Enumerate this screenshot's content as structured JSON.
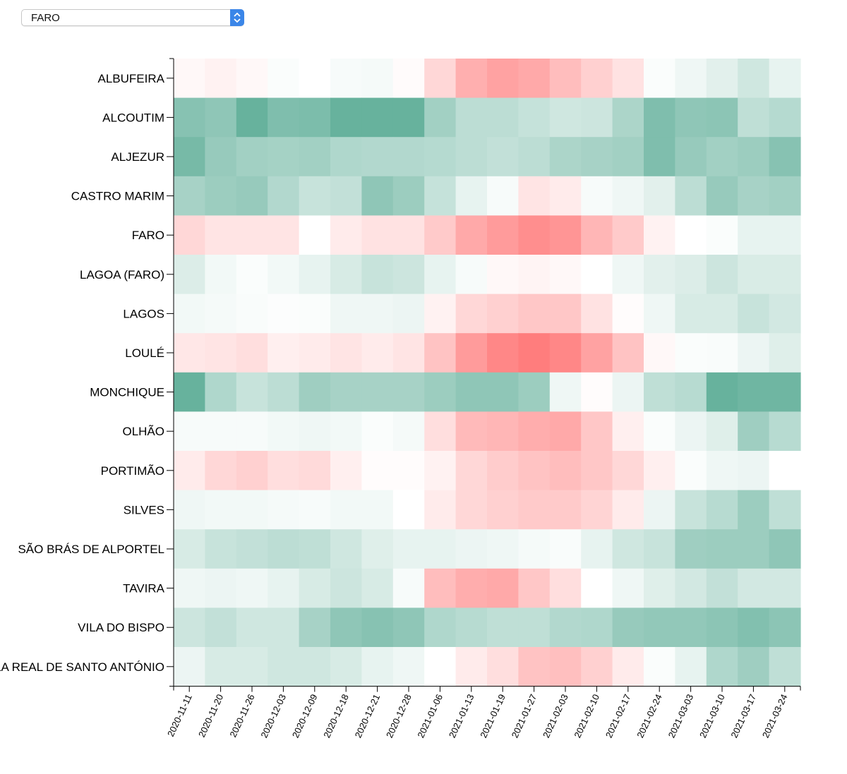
{
  "selector": {
    "value": "FARO",
    "options_visible": [
      "FARO"
    ],
    "icon": "chevron-up-down-icon"
  },
  "chart_data": {
    "type": "heatmap",
    "title": "",
    "xlabel": "",
    "ylabel": "",
    "grid": false,
    "color_scale": {
      "negative": "#5fae98",
      "neutral": "#ffffff",
      "positive": "#ff7a7a",
      "domain": [
        -1,
        1
      ]
    },
    "x": [
      "2020-11-11",
      "2020-11-20",
      "2020-11-26",
      "2020-12-03",
      "2020-12-09",
      "2020-12-18",
      "2020-12-21",
      "2020-12-28",
      "2021-01-06",
      "2021-01-13",
      "2021-01-19",
      "2021-01-27",
      "2021-02-03",
      "2021-02-10",
      "2021-02-17",
      "2021-02-24",
      "2021-03-03",
      "2021-03-10",
      "2021-03-17",
      "2021-03-24"
    ],
    "y": [
      "ALBUFEIRA",
      "ALCOUTIM",
      "ALJEZUR",
      "CASTRO MARIM",
      "FARO",
      "LAGOA (FARO)",
      "LAGOS",
      "LOULÉ",
      "MONCHIQUE",
      "OLHÃO",
      "PORTIMÃO",
      "SILVES",
      "SÃO BRÁS DE ALPORTEL",
      "TAVIRA",
      "VILA DO BISPO",
      "VILA REAL DE SANTO ANTÓNIO"
    ],
    "values": [
      [
        0.05,
        0.1,
        0.05,
        -0.03,
        0.0,
        -0.05,
        -0.06,
        0.03,
        0.3,
        0.6,
        0.7,
        0.65,
        0.5,
        0.35,
        0.22,
        -0.03,
        -0.1,
        -0.18,
        -0.3,
        -0.15
      ],
      [
        -0.75,
        -0.7,
        -0.95,
        -0.8,
        -0.82,
        -0.95,
        -0.95,
        -0.95,
        -0.58,
        -0.42,
        -0.42,
        -0.36,
        -0.3,
        -0.32,
        -0.52,
        -0.8,
        -0.7,
        -0.72,
        -0.4,
        -0.46
      ],
      [
        -0.85,
        -0.65,
        -0.58,
        -0.56,
        -0.58,
        -0.5,
        -0.48,
        -0.48,
        -0.46,
        -0.42,
        -0.38,
        -0.42,
        -0.52,
        -0.55,
        -0.58,
        -0.8,
        -0.65,
        -0.58,
        -0.62,
        -0.75
      ],
      [
        -0.55,
        -0.62,
        -0.65,
        -0.48,
        -0.35,
        -0.38,
        -0.7,
        -0.62,
        -0.36,
        -0.15,
        -0.05,
        0.2,
        0.15,
        -0.05,
        -0.1,
        -0.18,
        -0.42,
        -0.65,
        -0.55,
        -0.58
      ],
      [
        0.3,
        0.2,
        0.2,
        0.2,
        0.0,
        0.15,
        0.22,
        0.22,
        0.4,
        0.65,
        0.75,
        0.85,
        0.8,
        0.55,
        0.4,
        0.1,
        0.0,
        -0.03,
        -0.15,
        -0.15
      ],
      [
        -0.22,
        -0.08,
        -0.03,
        -0.08,
        -0.15,
        -0.25,
        -0.35,
        -0.32,
        -0.15,
        -0.05,
        0.05,
        0.08,
        0.05,
        0.0,
        -0.1,
        -0.18,
        -0.22,
        -0.32,
        -0.24,
        -0.24
      ],
      [
        -0.08,
        -0.06,
        -0.04,
        -0.02,
        -0.03,
        -0.1,
        -0.1,
        -0.12,
        0.1,
        0.3,
        0.35,
        0.42,
        0.42,
        0.22,
        0.02,
        -0.1,
        -0.25,
        -0.25,
        -0.35,
        -0.28
      ],
      [
        0.18,
        0.2,
        0.25,
        0.12,
        0.15,
        0.2,
        0.15,
        0.2,
        0.45,
        0.75,
        0.9,
        0.98,
        0.9,
        0.7,
        0.45,
        0.05,
        -0.03,
        -0.04,
        -0.12,
        -0.2
      ],
      [
        -0.95,
        -0.5,
        -0.35,
        -0.42,
        -0.6,
        -0.55,
        -0.55,
        -0.55,
        -0.62,
        -0.7,
        -0.7,
        -0.62,
        -0.1,
        0.02,
        -0.12,
        -0.4,
        -0.45,
        -0.95,
        -0.9,
        -0.9
      ],
      [
        -0.05,
        -0.05,
        -0.05,
        -0.08,
        -0.1,
        -0.08,
        -0.03,
        -0.06,
        0.25,
        0.52,
        0.55,
        0.62,
        0.65,
        0.42,
        0.12,
        -0.03,
        -0.12,
        -0.2,
        -0.6,
        -0.45
      ],
      [
        0.15,
        0.3,
        0.35,
        0.25,
        0.28,
        0.12,
        0.02,
        0.02,
        0.1,
        0.3,
        0.38,
        0.45,
        0.5,
        0.42,
        0.3,
        0.12,
        -0.03,
        -0.1,
        -0.12,
        0.0
      ],
      [
        -0.1,
        -0.08,
        -0.08,
        -0.06,
        -0.05,
        -0.08,
        -0.08,
        0.0,
        0.15,
        0.3,
        0.35,
        0.4,
        0.4,
        0.32,
        0.15,
        -0.12,
        -0.35,
        -0.45,
        -0.62,
        -0.4
      ],
      [
        -0.25,
        -0.35,
        -0.38,
        -0.42,
        -0.4,
        -0.3,
        -0.2,
        -0.15,
        -0.15,
        -0.12,
        -0.1,
        -0.06,
        -0.04,
        -0.15,
        -0.3,
        -0.35,
        -0.6,
        -0.62,
        -0.62,
        -0.7
      ],
      [
        -0.1,
        -0.12,
        -0.1,
        -0.15,
        -0.25,
        -0.32,
        -0.25,
        -0.05,
        0.5,
        0.62,
        0.65,
        0.42,
        0.25,
        0.0,
        -0.1,
        -0.2,
        -0.28,
        -0.38,
        -0.28,
        -0.28
      ],
      [
        -0.32,
        -0.38,
        -0.3,
        -0.3,
        -0.55,
        -0.7,
        -0.75,
        -0.7,
        -0.5,
        -0.45,
        -0.4,
        -0.4,
        -0.48,
        -0.5,
        -0.65,
        -0.68,
        -0.68,
        -0.72,
        -0.78,
        -0.72
      ],
      [
        -0.12,
        -0.25,
        -0.25,
        -0.3,
        -0.3,
        -0.25,
        -0.15,
        -0.1,
        0.0,
        0.15,
        0.25,
        0.45,
        0.48,
        0.35,
        0.15,
        -0.03,
        -0.15,
        -0.5,
        -0.6,
        -0.4
      ]
    ]
  }
}
